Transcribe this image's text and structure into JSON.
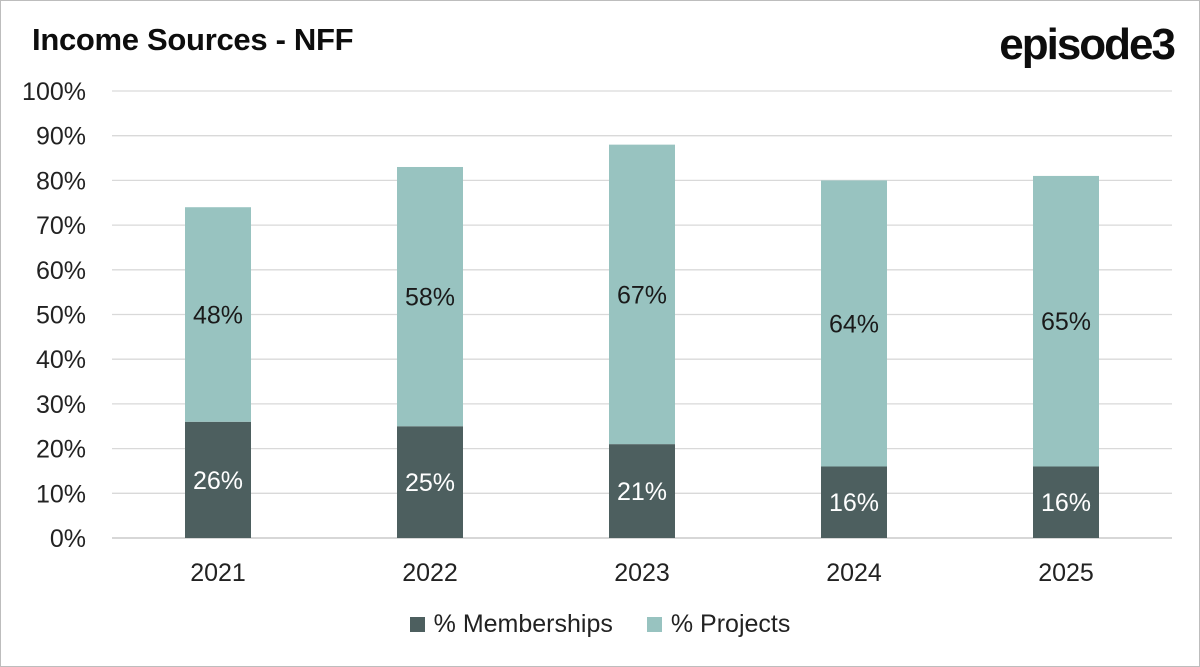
{
  "brand": "episode3",
  "chart_data": {
    "type": "bar",
    "stacked": true,
    "title": "Income Sources - NFF",
    "categories": [
      "2021",
      "2022",
      "2023",
      "2024",
      "2025"
    ],
    "series": [
      {
        "name": "% Memberships",
        "color": "#4d5f5f",
        "label_color": "#ffffff",
        "values": [
          26,
          25,
          21,
          16,
          16
        ],
        "labels": [
          "26%",
          "25%",
          "21%",
          "16%",
          "16%"
        ]
      },
      {
        "name": "% Projects",
        "color": "#98c3c0",
        "label_color": "#1a1a1a",
        "values": [
          48,
          58,
          67,
          64,
          65
        ],
        "labels": [
          "48%",
          "58%",
          "67%",
          "64%",
          "65%"
        ]
      }
    ],
    "ylim": [
      0,
      100
    ],
    "yticks": [
      0,
      10,
      20,
      30,
      40,
      50,
      60,
      70,
      80,
      90,
      100
    ],
    "ytick_labels": [
      "0%",
      "10%",
      "20%",
      "30%",
      "40%",
      "50%",
      "60%",
      "70%",
      "80%",
      "90%",
      "100%"
    ],
    "grid": true,
    "legend": "bottom-center",
    "xlabel": "",
    "ylabel": ""
  }
}
